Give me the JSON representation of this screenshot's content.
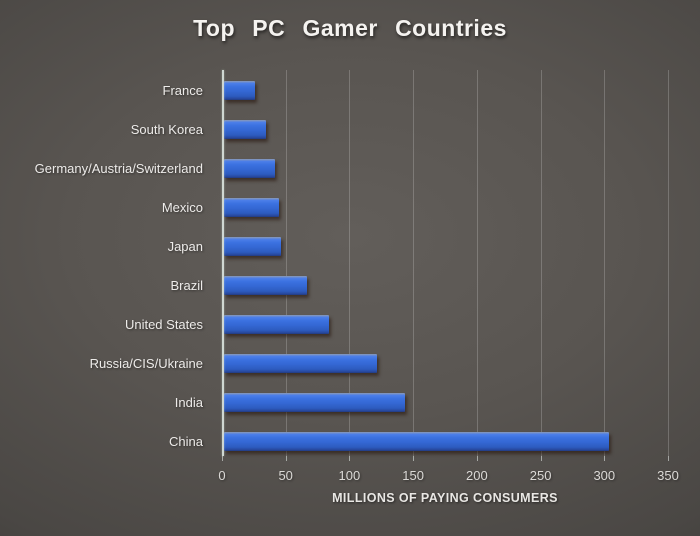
{
  "chart_data": {
    "type": "bar",
    "orientation": "horizontal",
    "title": "Top PC Gamer Countries",
    "xlabel": "MILLIONS OF PAYING CONSUMERS",
    "ylabel": "",
    "categories": [
      "France",
      "South Korea",
      "Germany/Austria/Switzerland",
      "Mexico",
      "Japan",
      "Brazil",
      "United States",
      "Russia/CIS/Ukraine",
      "India",
      "China"
    ],
    "values": [
      24,
      33,
      40,
      43,
      45,
      65,
      82,
      120,
      142,
      302
    ],
    "xlim": [
      0,
      350
    ],
    "xticks": [
      0,
      50,
      100,
      150,
      200,
      250,
      300,
      350
    ],
    "grid": "vertical-only",
    "legend": false,
    "bar_color": "#3a6fdd",
    "axis_line_color": "#e4eee9",
    "text_color": "#edebe9",
    "background_center": "#5f5b58",
    "background_edge": "#272523"
  }
}
